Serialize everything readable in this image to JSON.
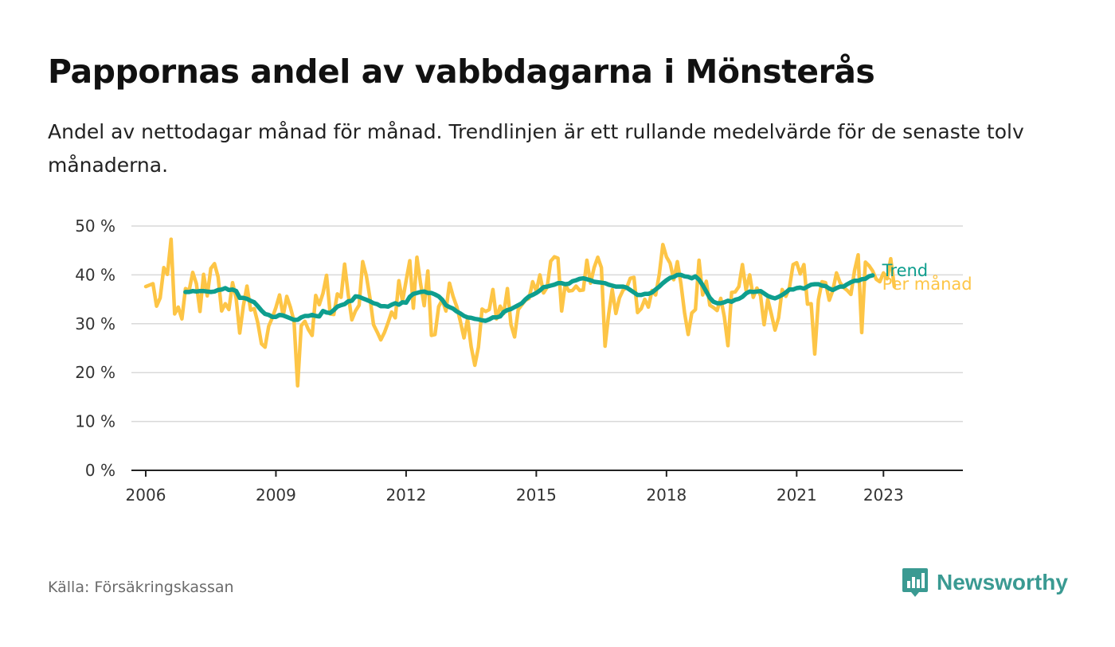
{
  "header": {
    "title": "Pappornas andel av vabbdagarna i Mönsterås",
    "subtitle": "Andel av nettodagar månad för månad. Trendlinjen är ett rullande medelvärde för de senaste tolv månaderna."
  },
  "footer": {
    "source": "Källa: Försäkringskassan",
    "brand": "Newsworthy",
    "brand_icon": "newsworthy-bar-chart-logo-icon",
    "brand_color": "#3a9a92"
  },
  "chart_data": {
    "type": "line",
    "title": "Pappornas andel av vabbdagarna i Mönsterås",
    "ylabel": "",
    "xlabel": "",
    "ylim": [
      0,
      50
    ],
    "yticks": [
      0,
      10,
      20,
      30,
      40,
      50
    ],
    "ytick_labels": [
      "0 %",
      "10 %",
      "20 %",
      "30 %",
      "40 %",
      "50 %"
    ],
    "xlim": [
      2005.67,
      2024.83
    ],
    "xticks": [
      2006,
      2009,
      2012,
      2015,
      2018,
      2021,
      2023
    ],
    "xtick_labels": [
      "2006",
      "2009",
      "2012",
      "2015",
      "2018",
      "2021",
      "2023"
    ],
    "grid": true,
    "legend": "end-of-line labels, right",
    "series": [
      {
        "name": "Per månad",
        "color": "#fdc546",
        "x_start": "2006-01",
        "frequency": "monthly",
        "values": [
          37.6,
          37.9,
          38.2,
          33.6,
          35.3,
          41.5,
          40.1,
          47.3,
          32.0,
          33.4,
          31.0,
          37.2,
          36.8,
          40.5,
          38.2,
          32.5,
          40.1,
          35.7,
          41.3,
          42.3,
          39.6,
          32.6,
          34.1,
          32.9,
          38.4,
          35.2,
          28.1,
          33.7,
          37.7,
          32.8,
          33.1,
          30.2,
          25.9,
          25.2,
          29.5,
          31.2,
          33.3,
          35.9,
          31.6,
          35.6,
          33.4,
          30.5,
          17.3,
          29.6,
          30.5,
          28.8,
          27.6,
          35.8,
          33.9,
          36.2,
          39.9,
          32.0,
          31.9,
          36.1,
          35.4,
          42.2,
          35.9,
          30.8,
          32.6,
          33.8,
          42.7,
          39.8,
          35.3,
          29.8,
          28.3,
          26.7,
          28.2,
          30.2,
          32.4,
          31.2,
          38.8,
          34.6,
          38.8,
          42.9,
          33.2,
          43.6,
          38.2,
          33.7,
          40.8,
          27.6,
          27.8,
          33.5,
          34.9,
          32.6,
          38.3,
          35.6,
          33.5,
          30.5,
          27.1,
          31.0,
          25.3,
          21.5,
          25.2,
          33.0,
          32.5,
          32.9,
          37.0,
          31.0,
          33.6,
          32.1,
          37.2,
          29.8,
          27.3,
          32.9,
          33.9,
          34.8,
          35.2,
          38.6,
          36.7,
          40.0,
          36.3,
          37.5,
          42.8,
          43.7,
          43.4,
          32.6,
          38.0,
          36.7,
          36.8,
          37.7,
          36.8,
          36.9,
          43.0,
          38.3,
          41.5,
          43.6,
          41.5,
          25.4,
          31.9,
          37.0,
          32.1,
          35.3,
          36.9,
          37.4,
          39.3,
          39.5,
          32.3,
          33.1,
          35.0,
          33.4,
          36.8,
          35.9,
          40.1,
          46.2,
          43.7,
          42.4,
          39.0,
          42.7,
          38.2,
          32.3,
          27.8,
          32.2,
          32.9,
          43.0,
          35.9,
          38.7,
          33.8,
          33.3,
          32.7,
          35.2,
          31.4,
          25.5,
          36.4,
          36.5,
          37.6,
          42.1,
          36.9,
          40.0,
          35.4,
          37.3,
          35.8,
          29.8,
          35.0,
          32.0,
          28.7,
          31.2,
          37.0,
          35.6,
          37.4,
          42.1,
          42.5,
          40.2,
          42.1,
          34.0,
          34.1,
          23.8,
          34.9,
          38.6,
          38.4,
          34.8,
          36.8,
          40.4,
          38.4,
          37.4,
          36.8,
          36.0,
          40.9,
          44.1,
          28.2,
          42.6,
          41.9,
          40.8,
          39.1,
          38.6,
          40.4,
          39.2,
          43.3,
          37.6
        ]
      },
      {
        "name": "Trend",
        "color": "#0e9e8e",
        "x_start": "2006-12",
        "frequency": "monthly",
        "values": [
          36.5,
          36.5,
          36.7,
          36.6,
          36.7,
          36.7,
          36.6,
          36.5,
          36.6,
          36.9,
          37.0,
          37.3,
          36.9,
          37.0,
          36.7,
          35.3,
          35.3,
          35.1,
          34.7,
          34.4,
          33.6,
          32.7,
          32.0,
          31.8,
          31.4,
          31.4,
          31.8,
          31.7,
          31.4,
          31.1,
          30.8,
          30.8,
          31.3,
          31.6,
          31.6,
          31.8,
          31.6,
          31.5,
          32.6,
          32.3,
          32.2,
          32.8,
          33.5,
          33.8,
          34.0,
          34.6,
          34.7,
          35.6,
          35.5,
          35.2,
          34.9,
          34.6,
          34.2,
          34.0,
          33.6,
          33.6,
          33.5,
          33.9,
          34.2,
          33.9,
          34.4,
          34.3,
          35.5,
          36.1,
          36.3,
          36.5,
          36.6,
          36.3,
          36.3,
          36.0,
          35.6,
          34.9,
          33.8,
          33.4,
          33.1,
          32.5,
          32.1,
          31.6,
          31.3,
          31.2,
          31.0,
          30.9,
          30.7,
          30.6,
          30.9,
          31.3,
          31.3,
          31.5,
          32.4,
          32.8,
          33.0,
          33.4,
          33.8,
          34.2,
          35.0,
          35.6,
          35.9,
          36.3,
          36.8,
          37.5,
          37.6,
          37.8,
          38.0,
          38.3,
          38.3,
          38.1,
          38.2,
          38.7,
          38.9,
          39.2,
          39.3,
          39.1,
          38.9,
          38.6,
          38.5,
          38.4,
          38.3,
          38.0,
          37.8,
          37.6,
          37.6,
          37.6,
          37.4,
          36.9,
          36.4,
          35.9,
          35.9,
          36.1,
          36.1,
          36.4,
          37.0,
          37.6,
          38.3,
          38.9,
          39.4,
          39.6,
          40.0,
          40.0,
          39.7,
          39.6,
          39.3,
          39.7,
          39.0,
          37.9,
          36.6,
          35.3,
          34.5,
          34.2,
          34.2,
          34.4,
          34.7,
          34.5,
          34.9,
          35.1,
          35.5,
          36.2,
          36.6,
          36.5,
          36.6,
          36.7,
          36.2,
          35.7,
          35.4,
          35.2,
          35.5,
          35.9,
          36.4,
          37.0,
          37.0,
          37.3,
          37.4,
          37.2,
          37.6,
          38.0,
          38.1,
          38.1,
          37.8,
          37.7,
          37.2,
          36.9,
          37.3,
          37.6,
          37.6,
          38.1,
          38.5,
          38.8,
          38.8,
          39.1,
          39.2,
          39.7,
          39.9
        ]
      }
    ]
  }
}
